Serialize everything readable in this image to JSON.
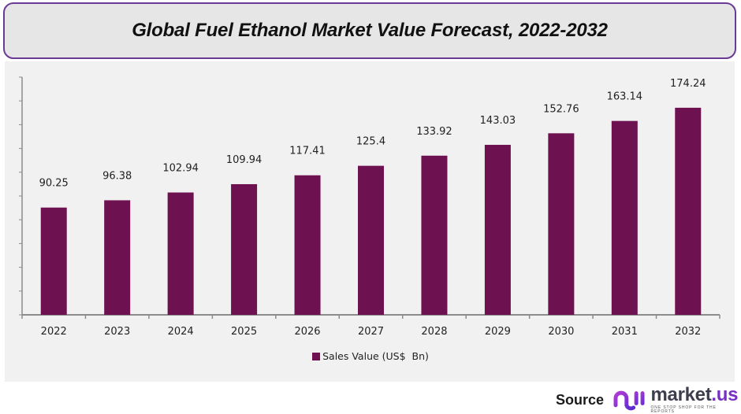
{
  "title": "Global Fuel Ethanol Market Value Forecast, 2022-2032",
  "colors": {
    "bar": "#6e1150",
    "title_border": "#6b3a94",
    "title_bg": "#e6e6e6",
    "panel_bg": "#f1f1f1",
    "axis": "#8c8c8c",
    "brand_accent": "#7a2fc4"
  },
  "chart_data": {
    "type": "bar",
    "title": "Global Fuel Ethanol Market Value Forecast, 2022-2032",
    "categories": [
      "2022",
      "2023",
      "2024",
      "2025",
      "2026",
      "2027",
      "2028",
      "2029",
      "2030",
      "2031",
      "2032"
    ],
    "series": [
      {
        "name": "Sales Value (US$  Bn)",
        "values": [
          90.25,
          96.38,
          102.94,
          109.94,
          117.41,
          125.4,
          133.92,
          143.03,
          152.76,
          163.14,
          174.24
        ],
        "labels": [
          "90.25",
          "96.38",
          "102.94",
          "109.94",
          "117.41",
          "125.4",
          "133.92",
          "143.03",
          "152.76",
          "163.14",
          "174.24"
        ]
      }
    ],
    "xlabel": "",
    "ylabel": "",
    "ylim": [
      0,
      200
    ],
    "y_tick_step": 20,
    "y_tick_labels_visible": false,
    "grid": false,
    "legend_position": "bottom"
  },
  "legend": {
    "label": "Sales Value (US$  Bn)"
  },
  "source": {
    "label": "Source",
    "brand_main": "market",
    "brand_suffix": ".us",
    "tagline": "ONE STOP SHOP FOR THE REPORTS",
    "logo_icon": "market-us-logo-icon"
  }
}
